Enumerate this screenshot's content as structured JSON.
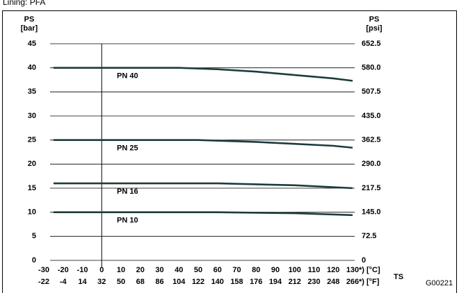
{
  "chart_data": {
    "type": "line",
    "title": "Lining: PFA",
    "y_label": "PS",
    "y_unit": "[bar]",
    "y2_label": "PS",
    "y2_unit": "[psi]",
    "x_label": "TS",
    "x_unit": "*) [°C]",
    "x2_unit": "*) [°F]",
    "figure_id": "G00221",
    "xlim": [
      -30,
      130
    ],
    "xticks": [
      -30,
      -20,
      -10,
      0,
      10,
      20,
      30,
      40,
      50,
      60,
      70,
      80,
      90,
      100,
      110,
      120,
      130
    ],
    "x2lim": [
      -22,
      266
    ],
    "x2ticks": [
      -22,
      -4,
      14,
      32,
      50,
      68,
      86,
      104,
      122,
      140,
      158,
      176,
      194,
      212,
      230,
      248,
      266
    ],
    "ylim": [
      0,
      45
    ],
    "yticks": [
      0,
      5,
      10,
      15,
      20,
      25,
      30,
      35,
      40,
      45
    ],
    "y2lim": [
      0,
      652.5
    ],
    "y2ticks": [
      0,
      72.5,
      {
        "value": 145,
        "label": "145.0"
      },
      217.5,
      {
        "value": 290,
        "label": "290.0"
      },
      362.5,
      {
        "value": 435,
        "label": "435.0"
      },
      507.5,
      {
        "value": 580,
        "label": "580.0"
      },
      652.5
    ],
    "grid": true,
    "series": [
      {
        "name": "PN 40",
        "color": "#1d3b3b",
        "x": [
          -25,
          40,
          60,
          80,
          100,
          120,
          130
        ],
        "values": [
          40,
          40,
          39.7,
          39.2,
          38.5,
          37.8,
          37.3
        ]
      },
      {
        "name": "PN 25",
        "color": "#1d3b3b",
        "x": [
          -25,
          50,
          80,
          100,
          120,
          130
        ],
        "values": [
          25,
          25,
          24.6,
          24.2,
          23.8,
          23.4
        ]
      },
      {
        "name": "PN 16",
        "color": "#1d3b3b",
        "x": [
          -25,
          60,
          100,
          130
        ],
        "values": [
          16,
          16,
          15.6,
          15
        ]
      },
      {
        "name": "PN 10",
        "color": "#1d3b3b",
        "x": [
          -25,
          60,
          100,
          130
        ],
        "values": [
          10,
          10,
          9.8,
          9.4
        ]
      }
    ]
  }
}
